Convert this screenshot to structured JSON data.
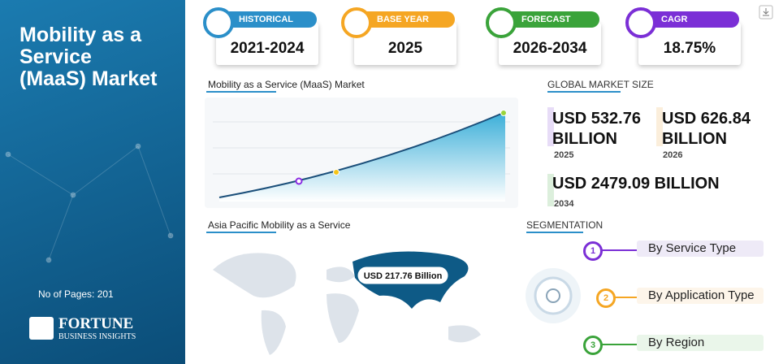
{
  "sidebar": {
    "title": "Mobility as a Service (MaaS) Market",
    "pages": "No of Pages: 201",
    "brand": "FORTUNE",
    "brand_sub": "BUSINESS INSIGHTS"
  },
  "cards": [
    {
      "label": "HISTORICAL PERIOD",
      "value": "2021-2024"
    },
    {
      "label": "BASE YEAR",
      "value": "2025"
    },
    {
      "label": "FORECAST PERIOD",
      "value": "2026-2034"
    },
    {
      "label": "CAGR",
      "value": "18.75%"
    }
  ],
  "chart_title": "Mobility as a Service (MaaS) Market",
  "market_size": {
    "title": "GLOBAL MARKET SIZE",
    "items": [
      {
        "value": "USD 532.76 BILLION",
        "year": "2025"
      },
      {
        "value": "USD 626.84 BILLION",
        "year": "2026"
      },
      {
        "value": "USD 2479.09 BILLION",
        "year": "2034"
      }
    ]
  },
  "region": {
    "title": "Asia Pacific Mobility as a Service",
    "label": "USD 217.76 Billion"
  },
  "segmentation": {
    "title": "SEGMENTATION",
    "items": [
      {
        "number": "1",
        "label": "By Service Type"
      },
      {
        "number": "2",
        "label": "By Application Type"
      },
      {
        "number": "3",
        "label": "By Region"
      }
    ]
  }
}
